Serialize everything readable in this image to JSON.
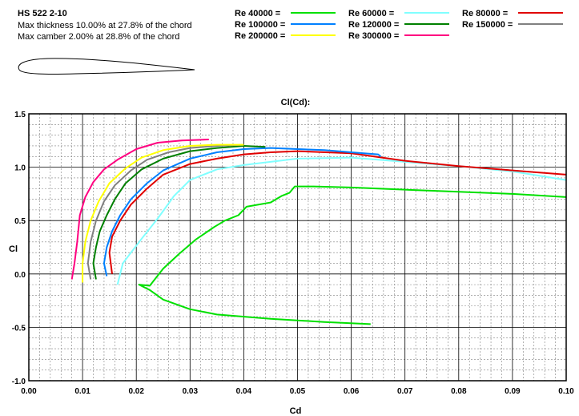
{
  "header": {
    "airfoil_name": "HS 522 2-10",
    "thickness_text": "Max thickness 10.00% at 27.8% of the chord",
    "camber_text": "Max camber 2.00% at 28.8% of the chord"
  },
  "colors": {
    "background": "#ffffff",
    "grid_major": "#000000",
    "grid_minor": "#808080",
    "airfoil_outline": "#000000"
  },
  "chart_data": {
    "type": "line",
    "title": "Cl(Cd):",
    "xlabel": "Cd",
    "ylabel": "Cl",
    "xlim": [
      0.0,
      0.1
    ],
    "ylim": [
      -1.0,
      1.5
    ],
    "x_ticks": [
      "0.00",
      "0.01",
      "0.02",
      "0.03",
      "0.04",
      "0.05",
      "0.06",
      "0.07",
      "0.08",
      "0.09",
      "0.10"
    ],
    "y_ticks": [
      "1.5",
      "1.0",
      "0.5",
      "0.0",
      "-0.5",
      "-1.0"
    ],
    "grid": "on (major solid, minor dashed)",
    "legend_position": "top",
    "series": [
      {
        "name": "Re 40000 =",
        "color": "#00e000",
        "x": [
          0.0636,
          0.055,
          0.045,
          0.035,
          0.03,
          0.025,
          0.0225,
          0.0205,
          0.0225,
          0.025,
          0.028,
          0.031,
          0.0345,
          0.0365,
          0.039,
          0.0405,
          0.045,
          0.047,
          0.0485,
          0.0495,
          0.053,
          0.06,
          0.07,
          0.08,
          0.09,
          0.1
        ],
        "y": [
          -0.47,
          -0.45,
          -0.42,
          -0.38,
          -0.33,
          -0.24,
          -0.15,
          -0.1,
          -0.11,
          0.05,
          0.19,
          0.32,
          0.44,
          0.5,
          0.55,
          0.63,
          0.67,
          0.73,
          0.76,
          0.82,
          0.82,
          0.81,
          0.79,
          0.77,
          0.75,
          0.72
        ]
      },
      {
        "name": "Re 60000 =",
        "color": "#80ffff",
        "x": [
          0.0165,
          0.017,
          0.0175,
          0.019,
          0.021,
          0.024,
          0.027,
          0.03,
          0.035,
          0.04,
          0.05,
          0.06,
          0.07,
          0.08,
          0.09,
          0.1
        ],
        "y": [
          -0.1,
          0.0,
          0.1,
          0.2,
          0.33,
          0.52,
          0.73,
          0.88,
          0.98,
          1.02,
          1.08,
          1.09,
          1.05,
          1.01,
          0.96,
          0.88
        ]
      },
      {
        "name": "Re 80000 =",
        "color": "#e00000",
        "x": [
          0.0155,
          0.015,
          0.0155,
          0.017,
          0.019,
          0.022,
          0.025,
          0.03,
          0.035,
          0.04,
          0.045,
          0.05,
          0.06,
          0.07,
          0.08,
          0.09,
          0.1
        ],
        "y": [
          0.0,
          0.2,
          0.35,
          0.5,
          0.65,
          0.8,
          0.93,
          1.03,
          1.08,
          1.12,
          1.14,
          1.15,
          1.13,
          1.06,
          1.01,
          0.97,
          0.93
        ]
      },
      {
        "name": "Re 100000 =",
        "color": "#0080ff",
        "x": [
          0.0145,
          0.014,
          0.0145,
          0.0155,
          0.017,
          0.019,
          0.022,
          0.025,
          0.03,
          0.035,
          0.04,
          0.045,
          0.05,
          0.055,
          0.06,
          0.065,
          0.0655
        ],
        "y": [
          -0.02,
          0.1,
          0.25,
          0.4,
          0.55,
          0.7,
          0.85,
          0.97,
          1.08,
          1.14,
          1.17,
          1.18,
          1.17,
          1.16,
          1.14,
          1.12,
          1.1
        ]
      },
      {
        "name": "Re 120000 =",
        "color": "#008000",
        "x": [
          0.0125,
          0.012,
          0.0125,
          0.0132,
          0.0145,
          0.016,
          0.018,
          0.021,
          0.025,
          0.03,
          0.035,
          0.04,
          0.044
        ],
        "y": [
          -0.05,
          0.1,
          0.25,
          0.4,
          0.55,
          0.7,
          0.85,
          0.98,
          1.08,
          1.15,
          1.18,
          1.2,
          1.19
        ]
      },
      {
        "name": "Re 150000 =",
        "color": "#808080",
        "x": [
          0.0115,
          0.011,
          0.0115,
          0.0125,
          0.014,
          0.016,
          0.019,
          0.022,
          0.026,
          0.03,
          0.035,
          0.04
        ],
        "y": [
          -0.05,
          0.1,
          0.3,
          0.5,
          0.68,
          0.83,
          0.97,
          1.07,
          1.14,
          1.18,
          1.2,
          1.21
        ]
      },
      {
        "name": "Re 200000 =",
        "color": "#ffff00",
        "x": [
          0.01,
          0.01,
          0.0105,
          0.0115,
          0.013,
          0.015,
          0.018,
          0.021,
          0.025,
          0.03,
          0.035,
          0.04
        ],
        "y": [
          -0.08,
          0.1,
          0.3,
          0.5,
          0.68,
          0.85,
          0.99,
          1.09,
          1.16,
          1.2,
          1.21,
          1.21
        ]
      },
      {
        "name": "Re 300000 =",
        "color": "#ff0080",
        "x": [
          0.008,
          0.0085,
          0.009,
          0.0095,
          0.0105,
          0.012,
          0.014,
          0.0165,
          0.02,
          0.024,
          0.0285,
          0.0335
        ],
        "y": [
          -0.05,
          0.1,
          0.3,
          0.55,
          0.72,
          0.86,
          0.98,
          1.07,
          1.17,
          1.23,
          1.25,
          1.26
        ]
      }
    ]
  }
}
